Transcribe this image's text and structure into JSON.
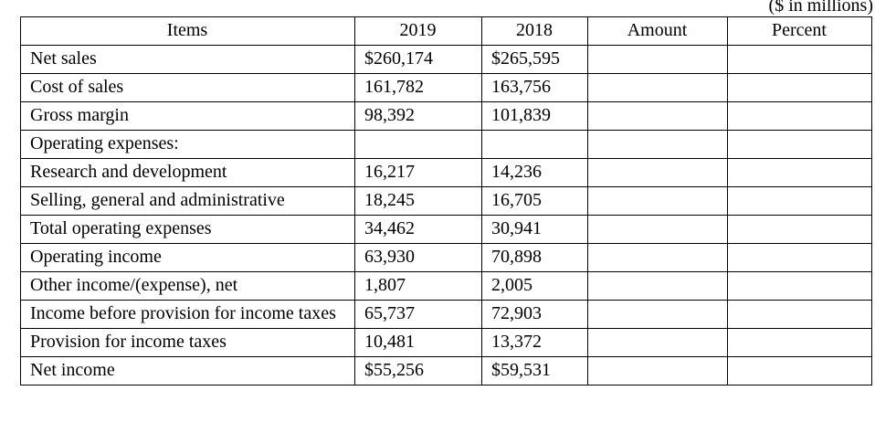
{
  "note": "($ in millions)",
  "table": {
    "columns": [
      "Items",
      "2019",
      "2018",
      "Amount",
      "Percent"
    ],
    "rows": [
      {
        "item": "Net sales",
        "y2019": "$260,174",
        "y2018": "$265,595",
        "amount": "",
        "percent": ""
      },
      {
        "item": "Cost of sales",
        "y2019": "161,782",
        "y2018": "163,756",
        "amount": "",
        "percent": ""
      },
      {
        "item": "Gross margin",
        "y2019": "98,392",
        "y2018": "101,839",
        "amount": "",
        "percent": ""
      },
      {
        "item": "Operating expenses:",
        "y2019": "",
        "y2018": "",
        "amount": "",
        "percent": ""
      },
      {
        "item": "Research and development",
        "y2019": "16,217",
        "y2018": "14,236",
        "amount": "",
        "percent": ""
      },
      {
        "item": "Selling, general and administrative",
        "y2019": "18,245",
        "y2018": "16,705",
        "amount": "",
        "percent": ""
      },
      {
        "item": "Total operating expenses",
        "y2019": "34,462",
        "y2018": "30,941",
        "amount": "",
        "percent": ""
      },
      {
        "item": "Operating income",
        "y2019": "63,930",
        "y2018": "70,898",
        "amount": "",
        "percent": ""
      },
      {
        "item": "Other income/(expense), net",
        "y2019": "1,807",
        "y2018": "2,005",
        "amount": "",
        "percent": ""
      },
      {
        "item": "Income before provision for income taxes",
        "y2019": "65,737",
        "y2018": "72,903",
        "amount": "",
        "percent": ""
      },
      {
        "item": "Provision for income taxes",
        "y2019": "10,481",
        "y2018": "13,372",
        "amount": "",
        "percent": ""
      },
      {
        "item": "Net income",
        "y2019": "$55,256",
        "y2018": "$59,531",
        "amount": "",
        "percent": ""
      }
    ]
  }
}
